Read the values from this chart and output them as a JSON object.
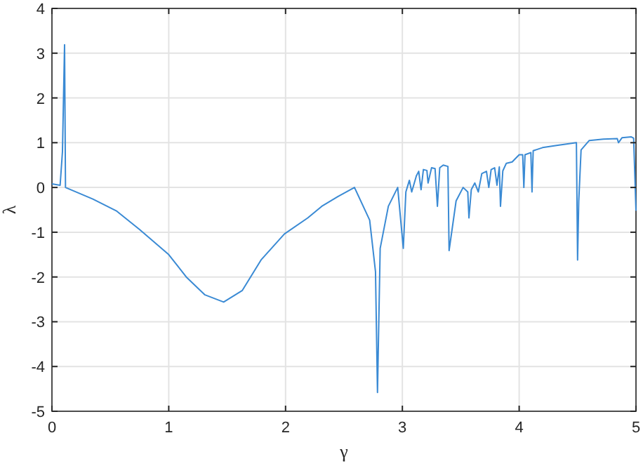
{
  "chart_data": {
    "type": "line",
    "xlabel": "γ",
    "ylabel": "λ",
    "xlim": [
      0,
      5
    ],
    "ylim": [
      -5,
      4
    ],
    "xticks": [
      0,
      1,
      2,
      3,
      4,
      5
    ],
    "yticks": [
      -5,
      -4,
      -3,
      -2,
      -1,
      0,
      1,
      2,
      3,
      4
    ],
    "grid": true,
    "series": [
      {
        "color": "#3a8ad4",
        "x": [
          0,
          0.07,
          0.09,
          0.108,
          0.116,
          0.35,
          0.55,
          0.75,
          1,
          1.15,
          1.31,
          1.47,
          1.63,
          1.79,
          1.99,
          2.19,
          2.31,
          2.45,
          2.59,
          2.72,
          2.77,
          2.787,
          2.81,
          2.88,
          2.96,
          3.008,
          3.03,
          3.06,
          3.08,
          3.12,
          3.14,
          3.16,
          3.18,
          3.21,
          3.22,
          3.25,
          3.28,
          3.3,
          3.32,
          3.35,
          3.39,
          3.4,
          3.46,
          3.52,
          3.56,
          3.57,
          3.59,
          3.62,
          3.65,
          3.68,
          3.72,
          3.74,
          3.76,
          3.79,
          3.81,
          3.83,
          3.84,
          3.86,
          3.89,
          3.94,
          4,
          4.03,
          4.04,
          4.05,
          4.1,
          4.11,
          4.12,
          4.2,
          4.32,
          4.49,
          4.5,
          4.51,
          4.53,
          4.6,
          4.72,
          4.84,
          4.85,
          4.88,
          4.96,
          4.98,
          5
        ],
        "values": [
          0.08,
          0.05,
          0.8,
          3.19,
          0,
          -0.26,
          -0.52,
          -0.94,
          -1.5,
          -2,
          -2.4,
          -2.56,
          -2.3,
          -1.62,
          -1.04,
          -0.68,
          -0.42,
          -0.2,
          0,
          -0.73,
          -1.88,
          -4.58,
          -1.36,
          -0.42,
          0,
          -1.36,
          -0.1,
          0.16,
          -0.1,
          0.26,
          0.36,
          -0.05,
          0.4,
          0.38,
          0.1,
          0.44,
          0.42,
          -0.42,
          0.44,
          0.5,
          0.47,
          -1.41,
          -0.3,
          0,
          -0.1,
          -0.68,
          -0.05,
          0.1,
          -0.1,
          0.31,
          0.36,
          0,
          0.4,
          0.44,
          0.05,
          0.46,
          -0.42,
          0.37,
          0.54,
          0.57,
          0.73,
          0.73,
          0,
          0.73,
          0.78,
          -0.1,
          0.82,
          0.89,
          0.94,
          1,
          -1.62,
          -0.31,
          0.84,
          1.05,
          1.08,
          1.09,
          1,
          1.11,
          1.13,
          1.1,
          -0.52
        ]
      }
    ]
  }
}
